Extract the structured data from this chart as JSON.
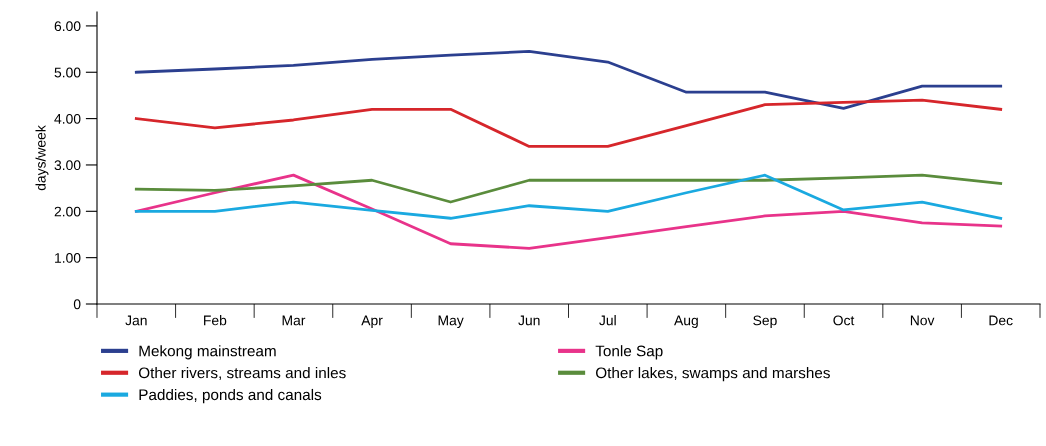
{
  "chart_data": {
    "type": "line",
    "ylabel": "days/week",
    "categories": [
      "Jan",
      "Feb",
      "Mar",
      "Apr",
      "May",
      "Jun",
      "Jul",
      "Aug",
      "Sep",
      "Oct",
      "Nov",
      "Dec"
    ],
    "series": [
      {
        "name": "Mekong mainstream",
        "color": "#2b3f8f",
        "values": [
          5.0,
          5.07,
          5.15,
          5.28,
          5.37,
          5.45,
          5.22,
          4.57,
          4.57,
          4.22,
          4.7,
          4.7
        ]
      },
      {
        "name": "Tonle Sap",
        "color": "#e8338a",
        "values": [
          2.0,
          2.4,
          2.78,
          2.05,
          1.3,
          1.2,
          1.43,
          1.67,
          1.9,
          2.0,
          1.75,
          1.68
        ]
      },
      {
        "name": "Other rivers, streams and inles",
        "color": "#d6262b",
        "values": [
          4.0,
          3.8,
          3.97,
          4.2,
          4.2,
          3.4,
          3.4,
          3.85,
          4.3,
          4.35,
          4.4,
          4.2
        ]
      },
      {
        "name": "Other lakes, swamps and marshes",
        "color": "#5a8c3c",
        "values": [
          2.48,
          2.45,
          2.55,
          2.67,
          2.2,
          2.67,
          2.67,
          2.67,
          2.67,
          2.72,
          2.78,
          2.6
        ]
      },
      {
        "name": "Paddies, ponds and canals",
        "color": "#1aa9e0",
        "values": [
          2.0,
          2.0,
          2.2,
          2.02,
          1.85,
          2.12,
          2.0,
          2.4,
          2.78,
          2.03,
          2.2,
          1.85
        ]
      }
    ],
    "ylim": [
      0,
      6.3
    ],
    "yticks": [
      0,
      {
        "value": 1,
        "label": "1.00"
      },
      {
        "value": 2,
        "label": "2.00"
      },
      {
        "value": 3,
        "label": "3.00"
      },
      {
        "value": 4,
        "label": "4.00"
      },
      {
        "value": 5,
        "label": "5.00"
      },
      {
        "value": 6,
        "label": "6.00"
      }
    ],
    "grid": false,
    "legend": "bottom",
    "marker": "none",
    "line_style": "solid"
  }
}
